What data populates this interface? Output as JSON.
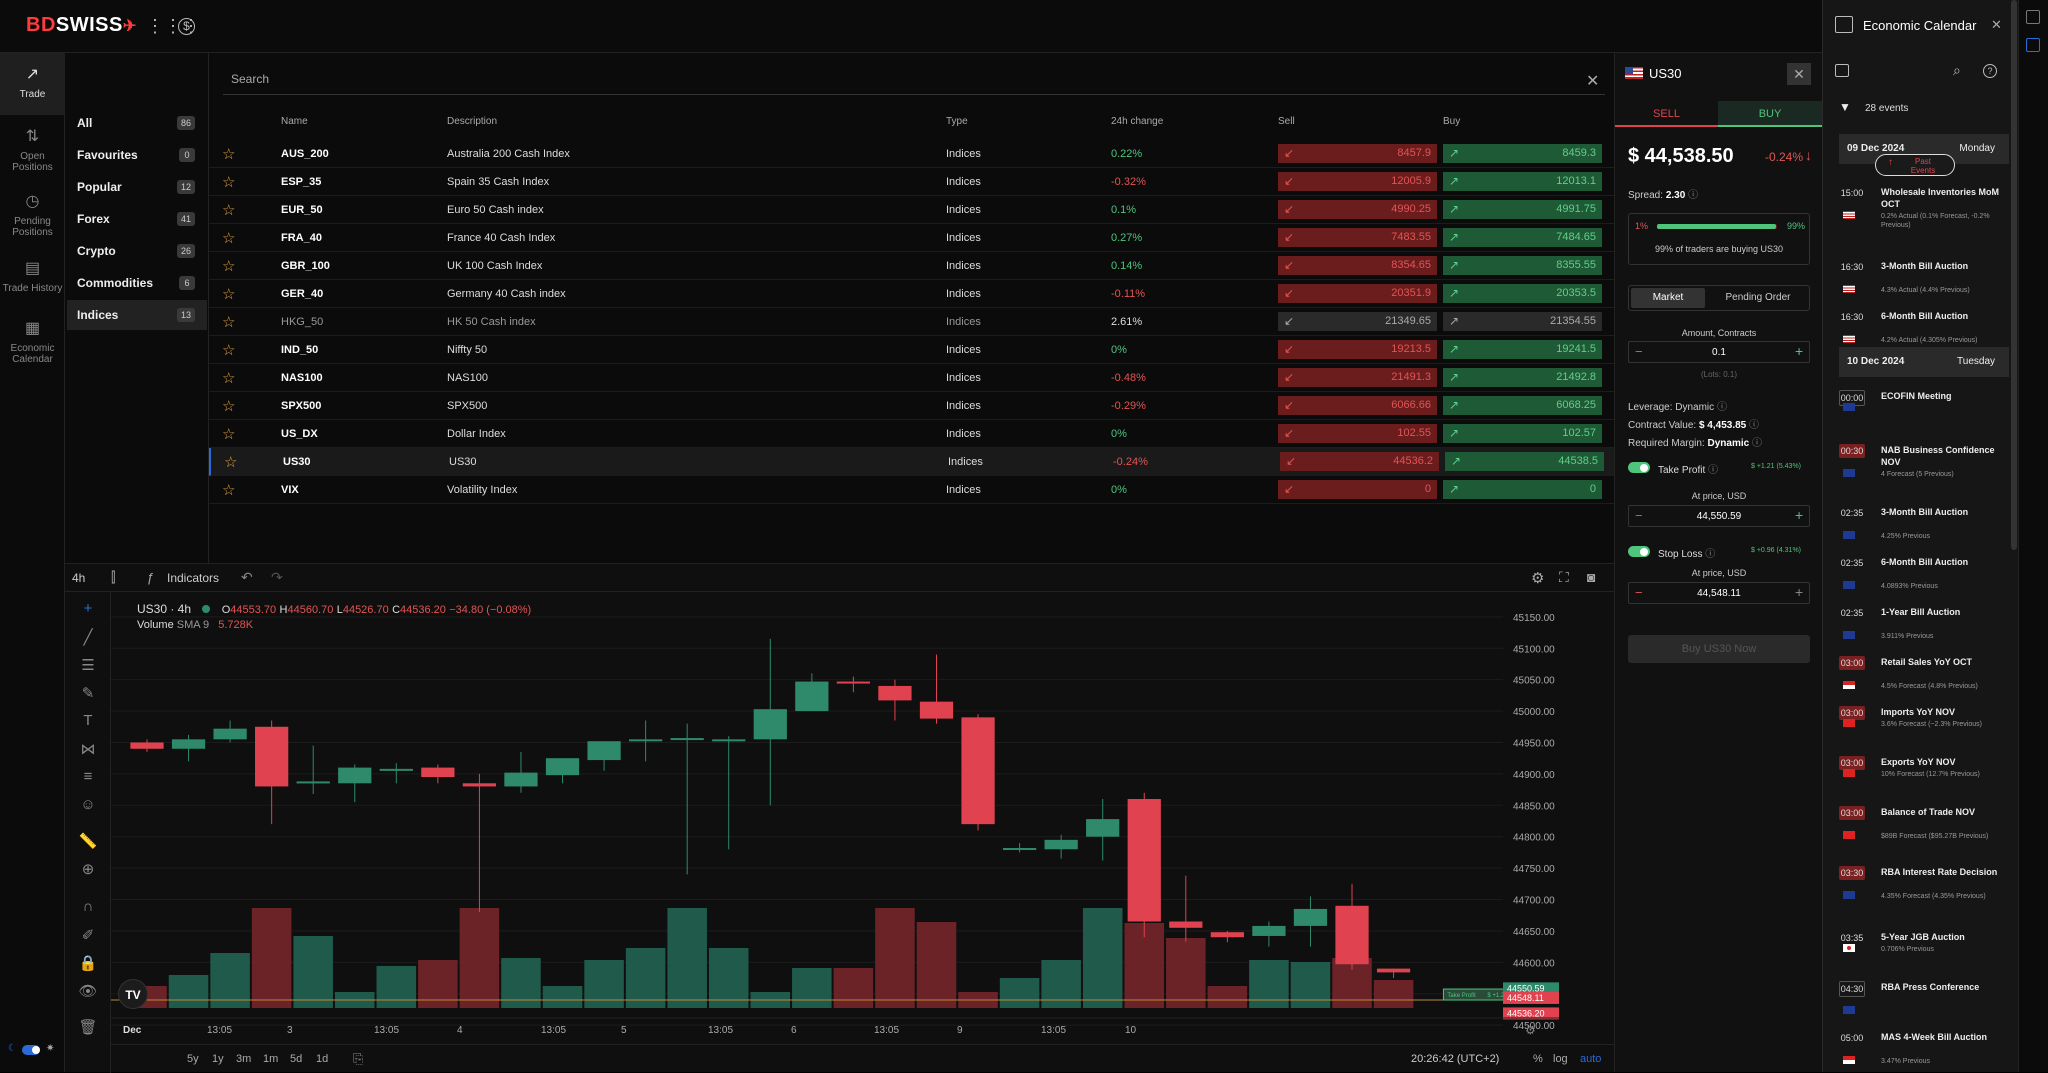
{
  "brand": {
    "logo": "BDSWISS"
  },
  "topbar": {
    "apps_icon": "grid-icon",
    "wallet_icon": "dollar-icon"
  },
  "leftnav": [
    {
      "label": "Trade",
      "icon": "chart-up-icon"
    },
    {
      "label": "Open Positions",
      "icon": "arrows-icon"
    },
    {
      "label": "Pending Positions",
      "icon": "clock-icon"
    },
    {
      "label": "Trade History",
      "icon": "history-icon"
    },
    {
      "label": "Economic Calendar",
      "icon": "calendar-icon"
    }
  ],
  "categories": [
    {
      "label": "All",
      "count": "86"
    },
    {
      "label": "Favourites",
      "count": "0"
    },
    {
      "label": "Popular",
      "count": "12"
    },
    {
      "label": "Forex",
      "count": "41"
    },
    {
      "label": "Crypto",
      "count": "26"
    },
    {
      "label": "Commodities",
      "count": "6"
    },
    {
      "label": "Indices",
      "count": "13"
    }
  ],
  "search": {
    "placeholder": "Search"
  },
  "table": {
    "headers": [
      "Name",
      "Description",
      "Type",
      "24h change",
      "Sell",
      "Buy"
    ],
    "rows": [
      {
        "name": "AUS_200",
        "desc": "Australia 200 Cash Index",
        "type": "Indices",
        "change": "0.22%",
        "dir": "pos",
        "sell": "8457.9",
        "buy": "8459.3"
      },
      {
        "name": "ESP_35",
        "desc": "Spain 35 Cash Index",
        "type": "Indices",
        "change": "-0.32%",
        "dir": "neg",
        "sell": "12005.9",
        "buy": "12013.1"
      },
      {
        "name": "EUR_50",
        "desc": "Euro 50 Cash index",
        "type": "Indices",
        "change": "0.1%",
        "dir": "pos",
        "sell": "4990.25",
        "buy": "4991.75"
      },
      {
        "name": "FRA_40",
        "desc": "France 40 Cash Index",
        "type": "Indices",
        "change": "0.27%",
        "dir": "pos",
        "sell": "7483.55",
        "buy": "7484.65"
      },
      {
        "name": "GBR_100",
        "desc": "UK 100 Cash Index",
        "type": "Indices",
        "change": "0.14%",
        "dir": "pos",
        "sell": "8354.65",
        "buy": "8355.55"
      },
      {
        "name": "GER_40",
        "desc": "Germany 40 Cash index",
        "type": "Indices",
        "change": "-0.11%",
        "dir": "neg",
        "sell": "20351.9",
        "buy": "20353.5"
      },
      {
        "name": "HKG_50",
        "desc": "HK 50 Cash index",
        "type": "Indices",
        "change": "2.61%",
        "dir": "dim",
        "sell": "21349.65",
        "buy": "21354.55"
      },
      {
        "name": "IND_50",
        "desc": "Niffty 50",
        "type": "Indices",
        "change": "0%",
        "dir": "pos",
        "sell": "19213.5",
        "buy": "19241.5"
      },
      {
        "name": "NAS100",
        "desc": "NAS100",
        "type": "Indices",
        "change": "-0.48%",
        "dir": "neg",
        "sell": "21491.3",
        "buy": "21492.8"
      },
      {
        "name": "SPX500",
        "desc": "SPX500",
        "type": "Indices",
        "change": "-0.29%",
        "dir": "neg",
        "sell": "6066.66",
        "buy": "6068.25"
      },
      {
        "name": "US_DX",
        "desc": "Dollar Index",
        "type": "Indices",
        "change": "0%",
        "dir": "pos",
        "sell": "102.55",
        "buy": "102.57"
      },
      {
        "name": "US30",
        "desc": "US30",
        "type": "Indices",
        "change": "-0.24%",
        "dir": "neg",
        "sell": "44536.2",
        "buy": "44538.5"
      },
      {
        "name": "VIX",
        "desc": "Volatility Index",
        "type": "Indices",
        "change": "0%",
        "dir": "pos",
        "sell": "0",
        "buy": "0"
      }
    ]
  },
  "chart": {
    "toolbar": {
      "interval": "4h",
      "indicators": "Indicators"
    },
    "legend": {
      "symbol": "US30 · 4h",
      "o": "44553.70",
      "h": "44560.70",
      "l": "44526.70",
      "c": "44536.20",
      "chg": "−34.80 (−0.08%)",
      "volume_label": "Volume",
      "volume_sma": "SMA 9",
      "volume_value": "5.728K"
    },
    "yticks": [
      "45150.00",
      "45100.00",
      "45050.00",
      "45000.00",
      "44950.00",
      "44900.00",
      "44850.00",
      "44800.00",
      "44750.00",
      "44700.00",
      "44650.00",
      "44600.00",
      "44550.00",
      "44500.00"
    ],
    "xticks": [
      "Dec",
      "13:05",
      "3",
      "13:05",
      "4",
      "13:05",
      "5",
      "13:05",
      "6",
      "13:05",
      "9",
      "13:05",
      "10"
    ],
    "price_tags": [
      "44550.59",
      "44548.11",
      "44536.20"
    ],
    "tp_label": "Take Profit",
    "tp_value": "$ +1.21",
    "ranges": [
      "5y",
      "1y",
      "3m",
      "1m",
      "5d",
      "1d"
    ],
    "time": "20:26:42 (UTC+2)",
    "scale": [
      "%",
      "log",
      "auto"
    ],
    "watermark": "TV"
  },
  "chart_data": {
    "type": "candlestick",
    "ylim": [
      44470,
      45180
    ],
    "candles": [
      [
        44950,
        44955,
        44935,
        44940
      ],
      [
        44940,
        44962,
        44920,
        44955
      ],
      [
        44955,
        44985,
        44950,
        44972
      ],
      [
        44975,
        44985,
        44820,
        44880
      ],
      [
        44885,
        44945,
        44868,
        44888
      ],
      [
        44885,
        44915,
        44855,
        44910
      ],
      [
        44905,
        44917,
        44885,
        44908
      ],
      [
        44910,
        44915,
        44885,
        44895
      ],
      [
        44885,
        44900,
        44680,
        44880
      ],
      [
        44880,
        44935,
        44870,
        44902
      ],
      [
        44898,
        44925,
        44885,
        44925
      ],
      [
        44922,
        44950,
        44905,
        44952
      ],
      [
        44955,
        44985,
        44920,
        44955
      ],
      [
        44955,
        44980,
        44740,
        44957
      ],
      [
        44955,
        44960,
        44780,
        44955
      ],
      [
        44955,
        45115,
        44850,
        45003
      ],
      [
        45000,
        45060,
        45000,
        45047
      ],
      [
        45047,
        45055,
        45030,
        45045
      ],
      [
        45040,
        45050,
        44985,
        45017
      ],
      [
        45015,
        45090,
        44980,
        44988
      ],
      [
        44990,
        44995,
        44810,
        44820
      ],
      [
        44780,
        44790,
        44775,
        44782
      ],
      [
        44780,
        44803,
        44765,
        44795
      ],
      [
        44800,
        44860,
        44762,
        44828
      ],
      [
        44860,
        44870,
        44640,
        44665
      ],
      [
        44665,
        44738,
        44633,
        44655
      ],
      [
        44648,
        44650,
        44632,
        44640
      ],
      [
        44642,
        44665,
        44625,
        44658
      ],
      [
        44658,
        44705,
        44625,
        44685
      ],
      [
        44690,
        44725,
        44588,
        44597
      ],
      [
        44590,
        44590,
        44575,
        44584
      ]
    ],
    "volumes": [
      0.22,
      0.33,
      0.55,
      1,
      0.72,
      0.16,
      0.42,
      0.48,
      1,
      0.5,
      0.22,
      0.48,
      0.6,
      1,
      0.6,
      0.16,
      0.4,
      0.4,
      1,
      0.86,
      0.16,
      0.3,
      0.48,
      1,
      0.85,
      0.7,
      0.22,
      0.48,
      0.46,
      0.5,
      0.28
    ]
  },
  "trade": {
    "symbol": "US30",
    "sell_tab": "SELL",
    "buy_tab": "BUY",
    "price": "$ 44,538.50",
    "change": "-0.24%",
    "spread_label": "Spread:",
    "spread_value": "2.30",
    "sentiment_sell": "1%",
    "sentiment_buy": "99%",
    "sentiment_buy_fraction": 0.99,
    "sentiment_text": "99% of traders are buying US30",
    "order_market": "Market",
    "order_pending": "Pending Order",
    "amount_label": "Amount, Contracts",
    "amount_value": "0.1",
    "lots": "(Lots: 0.1)",
    "leverage": "Leverage: Dynamic",
    "contract_value_label": "Contract Value:",
    "contract_value": "$ 4,453.85",
    "required_margin_label": "Required Margin:",
    "required_margin": "Dynamic",
    "tp_label": "Take Profit",
    "tp_gain": "$ +1.21 (5.43%)",
    "at_price": "At price, USD",
    "tp_value": "44,550.59",
    "sl_label": "Stop Loss",
    "sl_gain": "$ +0.96 (4.31%)",
    "sl_value": "44,548.11",
    "cta": "Buy US30 Now"
  },
  "econ": {
    "title": "Economic Calendar",
    "events_count": "28 events",
    "past_events": "Past Events",
    "days": [
      {
        "date": "09 Dec 2024",
        "day": "Monday"
      },
      {
        "date": "10 Dec 2024",
        "day": "Tuesday"
      }
    ],
    "events": [
      {
        "time": "15:00",
        "name": "Wholesale Inventories MoM OCT",
        "detail": "0.2% Actual (0.1% Forecast, -0.2% Previous)",
        "flag": "us",
        "style": "plain"
      },
      {
        "time": "16:30",
        "name": "3-Month Bill Auction",
        "detail": "4.3% Actual (4.4% Previous)",
        "flag": "us",
        "style": "plain"
      },
      {
        "time": "16:30",
        "name": "6-Month Bill Auction",
        "detail": "4.2% Actual (4.305% Previous)",
        "flag": "us",
        "style": "plain"
      },
      {
        "time": "00:00",
        "name": "ECOFIN Meeting",
        "detail": "",
        "flag": "eu",
        "style": "box"
      },
      {
        "time": "00:30",
        "name": "NAB Business Confidence NOV",
        "detail": "4 Forecast (5 Previous)",
        "flag": "au",
        "style": "hi"
      },
      {
        "time": "02:35",
        "name": "3-Month Bill Auction",
        "detail": "4.25% Previous",
        "flag": "au",
        "style": "plain"
      },
      {
        "time": "02:35",
        "name": "6-Month Bill Auction",
        "detail": "4.0893% Previous",
        "flag": "au",
        "style": "plain"
      },
      {
        "time": "02:35",
        "name": "1-Year Bill Auction",
        "detail": "3.911% Previous",
        "flag": "au",
        "style": "plain"
      },
      {
        "time": "03:00",
        "name": "Retail Sales YoY OCT",
        "detail": "4.5% Forecast (4.8% Previous)",
        "flag": "id",
        "style": "hi"
      },
      {
        "time": "03:00",
        "name": "Imports YoY NOV",
        "detail": "3.6% Forecast (−2.3% Previous)",
        "flag": "cn",
        "style": "hi"
      },
      {
        "time": "03:00",
        "name": "Exports YoY NOV",
        "detail": "10% Forecast (12.7% Previous)",
        "flag": "cn",
        "style": "hi"
      },
      {
        "time": "03:00",
        "name": "Balance of Trade NOV",
        "detail": "$89B Forecast ($95.27B Previous)",
        "flag": "cn",
        "style": "hi"
      },
      {
        "time": "03:30",
        "name": "RBA Interest Rate Decision",
        "detail": "4.35% Forecast (4.35% Previous)",
        "flag": "au",
        "style": "hi"
      },
      {
        "time": "03:35",
        "name": "5-Year JGB Auction",
        "detail": "0.706% Previous",
        "flag": "jp",
        "style": "plain"
      },
      {
        "time": "04:30",
        "name": "RBA Press Conference",
        "detail": "",
        "flag": "au",
        "style": "box"
      },
      {
        "time": "05:00",
        "name": "MAS 4-Week Bill Auction",
        "detail": "3.47% Previous",
        "flag": "sg",
        "style": "plain"
      }
    ]
  },
  "colors": {
    "up": "#2f8a6c",
    "down": "#e0434f",
    "accent": "#2a6bd8"
  }
}
